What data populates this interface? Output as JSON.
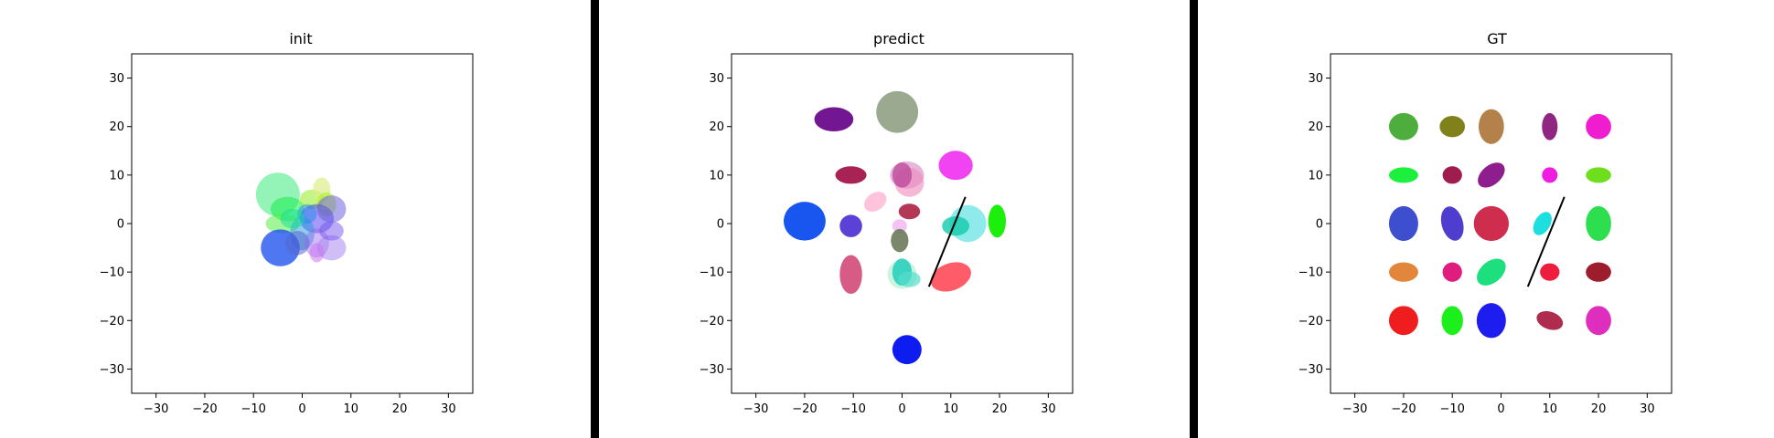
{
  "chart_data": [
    {
      "type": "scatter",
      "title": "init",
      "xlim": [
        -35,
        35
      ],
      "ylim": [
        -35,
        35
      ],
      "xticks": [
        -30,
        -20,
        -10,
        0,
        10,
        20,
        30
      ],
      "yticks": [
        -30,
        -20,
        -10,
        0,
        10,
        20,
        30
      ],
      "ellipses": [
        {
          "cx": -5,
          "cy": 6,
          "rx": 4.5,
          "ry": 4.5,
          "angle": 0,
          "color": "#66ee99",
          "alpha": 0.7
        },
        {
          "cx": -3,
          "cy": 3,
          "rx": 3.5,
          "ry": 2.5,
          "angle": 0,
          "color": "#22ee55",
          "alpha": 0.6
        },
        {
          "cx": -4,
          "cy": 0,
          "rx": 3.5,
          "ry": 2,
          "angle": 0,
          "color": "#55ee44",
          "alpha": 0.55
        },
        {
          "cx": 2,
          "cy": 5,
          "rx": 2.5,
          "ry": 2,
          "angle": 0,
          "color": "#99ee33",
          "alpha": 0.6
        },
        {
          "cx": 4,
          "cy": 7,
          "rx": 1.8,
          "ry": 2.5,
          "angle": 0,
          "color": "#ddee88",
          "alpha": 0.7
        },
        {
          "cx": 5,
          "cy": 4,
          "rx": 2,
          "ry": 2.5,
          "angle": 0,
          "color": "#aaee22",
          "alpha": 0.55
        },
        {
          "cx": 3,
          "cy": 1,
          "rx": 3.5,
          "ry": 3,
          "angle": 0,
          "color": "#3322ee",
          "alpha": 0.45
        },
        {
          "cx": 6,
          "cy": 3,
          "rx": 3,
          "ry": 2.8,
          "angle": 0,
          "color": "#6655dd",
          "alpha": 0.5
        },
        {
          "cx": 0,
          "cy": -2,
          "rx": 2.5,
          "ry": 3.5,
          "angle": 0,
          "color": "#2299dd",
          "alpha": 0.5
        },
        {
          "cx": -4.5,
          "cy": -5,
          "rx": 4,
          "ry": 3.8,
          "angle": 0,
          "color": "#2255ee",
          "alpha": 0.8
        },
        {
          "cx": -1,
          "cy": -4,
          "rx": 2.5,
          "ry": 2.5,
          "angle": 0,
          "color": "#5566cc",
          "alpha": 0.55
        },
        {
          "cx": 3,
          "cy": -4,
          "rx": 2.5,
          "ry": 3,
          "angle": 0,
          "color": "#9966ee",
          "alpha": 0.45
        },
        {
          "cx": 6,
          "cy": -5,
          "rx": 3,
          "ry": 2.6,
          "angle": 0,
          "color": "#aa88ee",
          "alpha": 0.55
        },
        {
          "cx": 3,
          "cy": -6,
          "rx": 1.5,
          "ry": 2,
          "angle": 0,
          "color": "#cc77ee",
          "alpha": 0.55
        },
        {
          "cx": 6,
          "cy": -1.5,
          "rx": 2.5,
          "ry": 2,
          "angle": 0,
          "color": "#7755ee",
          "alpha": 0.5
        },
        {
          "cx": 1,
          "cy": 2,
          "rx": 2,
          "ry": 2,
          "angle": 0,
          "color": "#2288ee",
          "alpha": 0.5
        },
        {
          "cx": -2,
          "cy": 1,
          "rx": 2.5,
          "ry": 2,
          "angle": 0,
          "color": "#11dd99",
          "alpha": 0.5
        }
      ]
    },
    {
      "type": "scatter",
      "title": "predict",
      "xlim": [
        -35,
        35
      ],
      "ylim": [
        -35,
        35
      ],
      "xticks": [
        -30,
        -20,
        -10,
        0,
        10,
        20,
        30
      ],
      "yticks": [
        -30,
        -20,
        -10,
        0,
        10,
        20,
        30
      ],
      "line": {
        "x": [
          5.5,
          13
        ],
        "y": [
          -13,
          5.5
        ],
        "color": "#000000"
      },
      "ellipses": [
        {
          "cx": -14,
          "cy": 21.5,
          "rx": 4,
          "ry": 2.5,
          "angle": 0,
          "color": "#6b0a8c",
          "alpha": 0.95
        },
        {
          "cx": -1,
          "cy": 23,
          "rx": 4.3,
          "ry": 4.3,
          "angle": 0,
          "color": "#8a9a7c",
          "alpha": 0.85
        },
        {
          "cx": -10.5,
          "cy": 10,
          "rx": 3.2,
          "ry": 1.8,
          "angle": 0,
          "color": "#a3164a",
          "alpha": 0.95
        },
        {
          "cx": 1,
          "cy": 10,
          "rx": 3.5,
          "ry": 2.8,
          "angle": 0,
          "color": "#dd99cc",
          "alpha": 0.7
        },
        {
          "cx": 1.5,
          "cy": 8.5,
          "rx": 3,
          "ry": 3,
          "angle": 0,
          "color": "#ee88bb",
          "alpha": 0.6
        },
        {
          "cx": 0,
          "cy": 10,
          "rx": 2,
          "ry": 2.6,
          "angle": 0,
          "color": "#bb4499",
          "alpha": 0.75
        },
        {
          "cx": 11,
          "cy": 12,
          "rx": 3.5,
          "ry": 3,
          "angle": 0,
          "color": "#ee22ee",
          "alpha": 0.85
        },
        {
          "cx": -5.5,
          "cy": 4.5,
          "rx": 2.5,
          "ry": 1.8,
          "angle": -35,
          "color": "#ffaacc",
          "alpha": 0.7
        },
        {
          "cx": 1.5,
          "cy": 2.5,
          "rx": 2.2,
          "ry": 1.6,
          "angle": 0,
          "color": "#aa2244",
          "alpha": 0.9
        },
        {
          "cx": -20,
          "cy": 0.5,
          "rx": 4.3,
          "ry": 4,
          "angle": 0,
          "color": "#0044ee",
          "alpha": 0.9
        },
        {
          "cx": -10.5,
          "cy": -0.5,
          "rx": 2.3,
          "ry": 2.3,
          "angle": 0,
          "color": "#3311cc",
          "alpha": 0.8
        },
        {
          "cx": -0.5,
          "cy": -0.5,
          "rx": 1.5,
          "ry": 1.4,
          "angle": 0,
          "color": "#ee99ee",
          "alpha": 0.6
        },
        {
          "cx": -0.5,
          "cy": -3.5,
          "rx": 1.8,
          "ry": 2.4,
          "angle": 0,
          "color": "#6b7a5a",
          "alpha": 0.9
        },
        {
          "cx": 13.5,
          "cy": 0,
          "rx": 3.8,
          "ry": 3.8,
          "angle": 0,
          "color": "#44dddd",
          "alpha": 0.6
        },
        {
          "cx": 11,
          "cy": -0.5,
          "rx": 2.8,
          "ry": 2,
          "angle": 0,
          "color": "#11ccaa",
          "alpha": 0.8
        },
        {
          "cx": 19.5,
          "cy": 0.5,
          "rx": 1.8,
          "ry": 3.4,
          "angle": 0,
          "color": "#11ee00",
          "alpha": 0.95
        },
        {
          "cx": -10.5,
          "cy": -10.5,
          "rx": 2.3,
          "ry": 4,
          "angle": 0,
          "color": "#cc3366",
          "alpha": 0.8
        },
        {
          "cx": 0,
          "cy": -10.5,
          "rx": 3,
          "ry": 3,
          "angle": 0,
          "color": "#aaeecc",
          "alpha": 0.6
        },
        {
          "cx": 0,
          "cy": -10,
          "rx": 2,
          "ry": 2.8,
          "angle": 0,
          "color": "#22ccbb",
          "alpha": 0.85
        },
        {
          "cx": 1.5,
          "cy": -11.5,
          "rx": 2.3,
          "ry": 1.6,
          "angle": 0,
          "color": "#55ddcc",
          "alpha": 0.7
        },
        {
          "cx": 10,
          "cy": -11,
          "rx": 4.3,
          "ry": 2.8,
          "angle": -20,
          "color": "#ff3344",
          "alpha": 0.8
        },
        {
          "cx": 1,
          "cy": -26,
          "rx": 3,
          "ry": 3,
          "angle": 0,
          "color": "#0011ee",
          "alpha": 0.95
        }
      ]
    },
    {
      "type": "scatter",
      "title": "GT",
      "xlim": [
        -35,
        35
      ],
      "ylim": [
        -35,
        35
      ],
      "xticks": [
        -30,
        -20,
        -10,
        0,
        10,
        20,
        30
      ],
      "yticks": [
        -30,
        -20,
        -10,
        0,
        10,
        20,
        30
      ],
      "line": {
        "x": [
          5.5,
          13
        ],
        "y": [
          -13,
          5.5
        ],
        "color": "#000000"
      },
      "ellipses": [
        {
          "cx": -20,
          "cy": 20,
          "rx": 3,
          "ry": 2.8,
          "angle": 0,
          "color": "#44aa33",
          "alpha": 0.95
        },
        {
          "cx": -10,
          "cy": 20,
          "rx": 2.6,
          "ry": 2.2,
          "angle": 0,
          "color": "#7a7a10",
          "alpha": 0.95
        },
        {
          "cx": -2,
          "cy": 20,
          "rx": 2.6,
          "ry": 3.6,
          "angle": 0,
          "color": "#b07a40",
          "alpha": 0.95
        },
        {
          "cx": 10,
          "cy": 20,
          "rx": 1.6,
          "ry": 2.8,
          "angle": 0,
          "color": "#8a1a7a",
          "alpha": 0.95
        },
        {
          "cx": 20,
          "cy": 20,
          "rx": 2.6,
          "ry": 2.6,
          "angle": 0,
          "color": "#ee11cc",
          "alpha": 0.95
        },
        {
          "cx": -20,
          "cy": 10,
          "rx": 3,
          "ry": 1.6,
          "angle": 0,
          "color": "#11ee33",
          "alpha": 0.95
        },
        {
          "cx": -10,
          "cy": 10,
          "rx": 2,
          "ry": 1.8,
          "angle": 0,
          "color": "#9a1044",
          "alpha": 0.95
        },
        {
          "cx": -2,
          "cy": 10,
          "rx": 3.2,
          "ry": 2,
          "angle": -40,
          "color": "#881188",
          "alpha": 0.95
        },
        {
          "cx": 10,
          "cy": 10,
          "rx": 1.6,
          "ry": 1.6,
          "angle": 0,
          "color": "#ee11dd",
          "alpha": 0.95
        },
        {
          "cx": 20,
          "cy": 10,
          "rx": 2.6,
          "ry": 1.6,
          "angle": 0,
          "color": "#66dd11",
          "alpha": 0.95
        },
        {
          "cx": -20,
          "cy": 0,
          "rx": 3,
          "ry": 3.6,
          "angle": 0,
          "color": "#3344cc",
          "alpha": 0.95
        },
        {
          "cx": -10,
          "cy": 0,
          "rx": 2.2,
          "ry": 3.6,
          "angle": -15,
          "color": "#4433cc",
          "alpha": 0.95
        },
        {
          "cx": -2,
          "cy": 0,
          "rx": 3.6,
          "ry": 3.6,
          "angle": 0,
          "color": "#cc2244",
          "alpha": 0.95
        },
        {
          "cx": 8.5,
          "cy": 0,
          "rx": 2.6,
          "ry": 1.6,
          "angle": -60,
          "color": "#11dddd",
          "alpha": 0.95
        },
        {
          "cx": 20,
          "cy": 0,
          "rx": 2.6,
          "ry": 3.6,
          "angle": 0,
          "color": "#22dd44",
          "alpha": 0.95
        },
        {
          "cx": -20,
          "cy": -10,
          "rx": 3,
          "ry": 2,
          "angle": 0,
          "color": "#e08030",
          "alpha": 0.95
        },
        {
          "cx": -10,
          "cy": -10,
          "rx": 2,
          "ry": 2,
          "angle": 0,
          "color": "#dd1177",
          "alpha": 0.95
        },
        {
          "cx": -2,
          "cy": -10,
          "rx": 3.4,
          "ry": 2.2,
          "angle": -40,
          "color": "#11dd77",
          "alpha": 0.95
        },
        {
          "cx": 10,
          "cy": -10,
          "rx": 2,
          "ry": 1.8,
          "angle": 0,
          "color": "#ee1133",
          "alpha": 0.95
        },
        {
          "cx": 20,
          "cy": -10,
          "rx": 2.6,
          "ry": 2,
          "angle": 0,
          "color": "#991122",
          "alpha": 0.95
        },
        {
          "cx": -20,
          "cy": -20,
          "rx": 3,
          "ry": 3,
          "angle": 0,
          "color": "#ee1111",
          "alpha": 0.95
        },
        {
          "cx": -10,
          "cy": -20,
          "rx": 2.2,
          "ry": 3,
          "angle": 0,
          "color": "#11ee11",
          "alpha": 0.95
        },
        {
          "cx": -2,
          "cy": -20,
          "rx": 3,
          "ry": 3.6,
          "angle": 0,
          "color": "#1111ee",
          "alpha": 0.95
        },
        {
          "cx": 10,
          "cy": -20,
          "rx": 2.8,
          "ry": 1.8,
          "angle": 20,
          "color": "#aa2244",
          "alpha": 0.95
        },
        {
          "cx": 20,
          "cy": -20,
          "rx": 2.6,
          "ry": 3,
          "angle": 0,
          "color": "#dd22bb",
          "alpha": 0.95
        }
      ]
    }
  ]
}
